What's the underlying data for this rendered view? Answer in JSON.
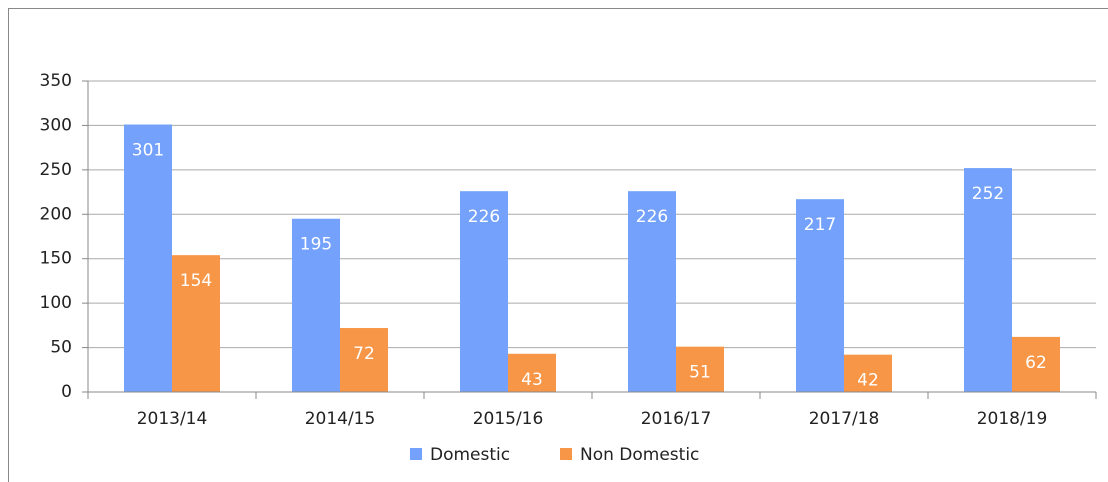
{
  "chart_data": {
    "type": "bar",
    "categories": [
      "2013/14",
      "2014/15",
      "2015/16",
      "2016/17",
      "2017/18",
      "2018/19"
    ],
    "series": [
      {
        "name": "Domestic",
        "color": "#73a1fb",
        "values": [
          301,
          195,
          226,
          226,
          217,
          252
        ]
      },
      {
        "name": "Non Domestic",
        "color": "#f79646",
        "values": [
          154,
          72,
          43,
          51,
          42,
          62
        ]
      }
    ],
    "ylim": [
      0,
      350
    ],
    "yticks": [
      0,
      50,
      100,
      150,
      200,
      250,
      300,
      350
    ],
    "grid": true,
    "legend": "bottom"
  }
}
